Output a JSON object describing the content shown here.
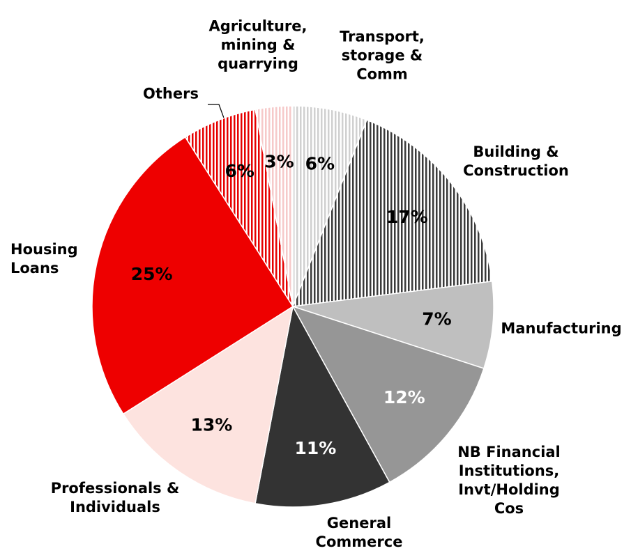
{
  "chart_data": {
    "type": "pie",
    "categories": [
      "Transport, storage & Comm",
      "Building & Construction",
      "Manufacturing",
      "NB Financial Institutions, Invt/Holding Cos",
      "General Commerce",
      "Professionals & Individuals",
      "Housing Loans",
      "Others",
      "Agriculture, mining & quarrying"
    ],
    "values": [
      6,
      17,
      7,
      12,
      11,
      13,
      25,
      6,
      3
    ],
    "value_labels": [
      "6%",
      "17%",
      "7%",
      "12%",
      "11%",
      "13%",
      "25%",
      "6%",
      "3%"
    ],
    "colors": [
      "#d0d0d0",
      "#3a3a3a",
      "#bfbfbf",
      "#969696",
      "#333333",
      "#fde3df",
      "#ee0000",
      "#e60000",
      "#f6c9c9"
    ],
    "hatched": [
      true,
      true,
      false,
      false,
      false,
      false,
      false,
      true,
      true
    ],
    "start_angle": 0,
    "direction": "clockwise"
  }
}
